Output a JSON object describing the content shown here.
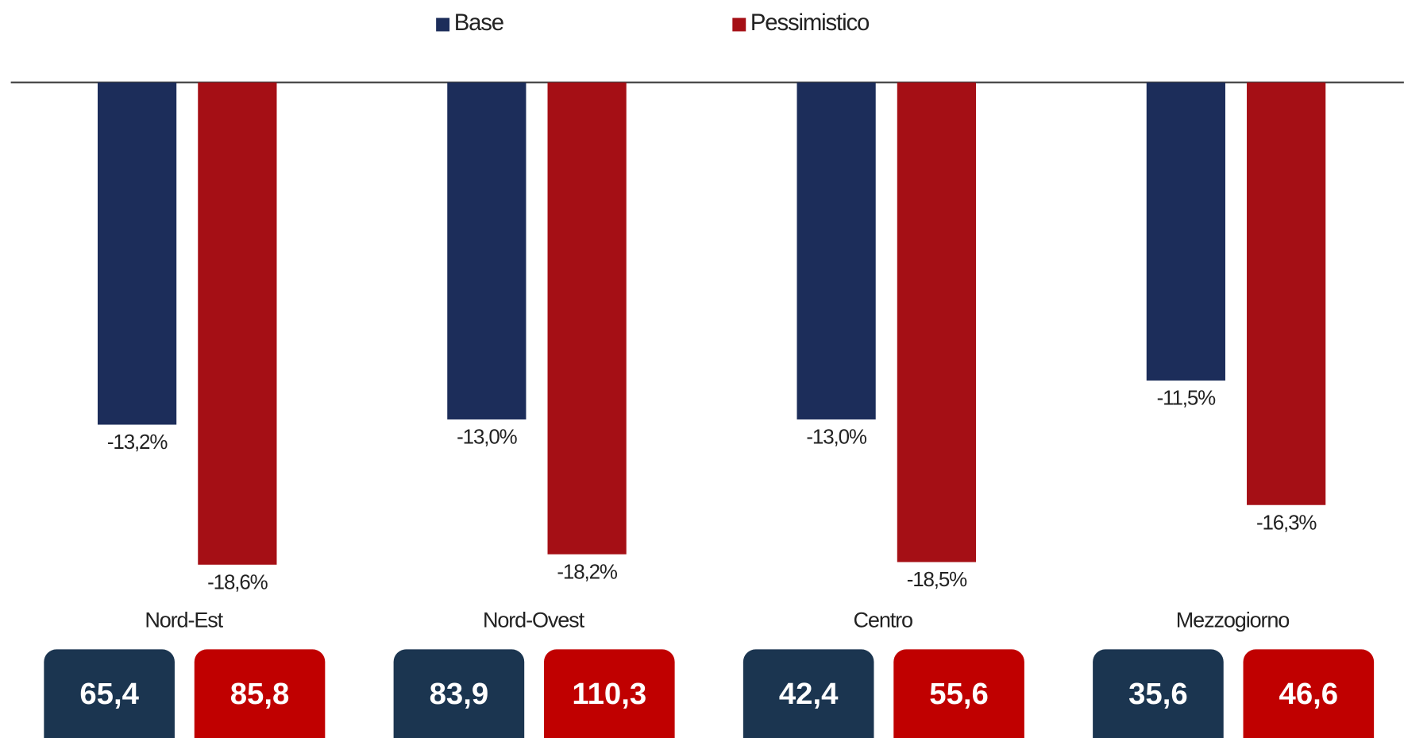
{
  "chart_data": {
    "type": "bar",
    "categories": [
      "Nord-Est",
      "Nord-Ovest",
      "Centro",
      "Mezzogiorno"
    ],
    "series": [
      {
        "name": "Base",
        "color": "#1c2d5a",
        "values": [
          -13.2,
          -13.0,
          -13.0,
          -11.5
        ],
        "value_labels": [
          "-13,2%",
          "-13,0%",
          "-13,0%",
          "-11,5%"
        ],
        "box_color": "#1b3550",
        "box_values": [
          65.4,
          83.9,
          42.4,
          35.6
        ],
        "box_labels": [
          "65,4",
          "83,9",
          "42,4",
          "35,6"
        ]
      },
      {
        "name": "Pessimistico",
        "color": "#a50f15",
        "values": [
          -18.6,
          -18.2,
          -18.5,
          -16.3
        ],
        "value_labels": [
          "-18,6%",
          "-18,2%",
          "-18,5%",
          "-16,3%"
        ],
        "box_color": "#c00000",
        "box_values": [
          85.8,
          110.3,
          55.6,
          46.6
        ],
        "box_labels": [
          "85,8",
          "110,3",
          "55,6",
          "46,6"
        ]
      }
    ],
    "ylim": [
      -20,
      0
    ],
    "legend": "top"
  }
}
